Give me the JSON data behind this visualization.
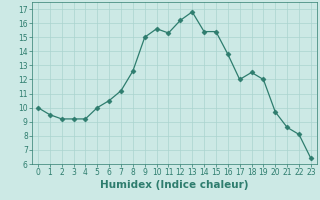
{
  "x": [
    0,
    1,
    2,
    3,
    4,
    5,
    6,
    7,
    8,
    9,
    10,
    11,
    12,
    13,
    14,
    15,
    16,
    17,
    18,
    19,
    20,
    21,
    22,
    23
  ],
  "y": [
    10.0,
    9.5,
    9.2,
    9.2,
    9.2,
    10.0,
    10.5,
    11.2,
    12.6,
    15.0,
    15.6,
    15.3,
    16.2,
    16.8,
    15.4,
    15.4,
    13.8,
    12.0,
    12.5,
    12.0,
    9.7,
    8.6,
    8.1,
    6.4
  ],
  "xlabel": "Humidex (Indice chaleur)",
  "line_color": "#2e7d6e",
  "marker": "D",
  "marker_size": 2.5,
  "bg_color": "#cce9e5",
  "grid_color": "#aad4cf",
  "xlim": [
    -0.5,
    23.5
  ],
  "ylim": [
    6,
    17.5
  ],
  "yticks": [
    6,
    7,
    8,
    9,
    10,
    11,
    12,
    13,
    14,
    15,
    16,
    17
  ],
  "xticks": [
    0,
    1,
    2,
    3,
    4,
    5,
    6,
    7,
    8,
    9,
    10,
    11,
    12,
    13,
    14,
    15,
    16,
    17,
    18,
    19,
    20,
    21,
    22,
    23
  ],
  "tick_fontsize": 5.5,
  "xlabel_fontsize": 7.5
}
